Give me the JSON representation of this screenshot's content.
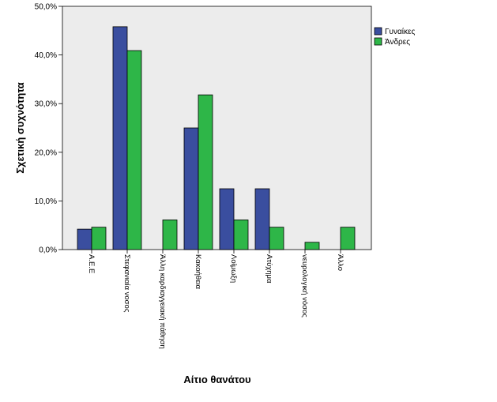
{
  "chart_data": {
    "type": "bar",
    "title": "",
    "xlabel": "Αίτιο θανάτου",
    "ylabel": "Σχετική συχνότητα",
    "ylim": [
      0,
      50
    ],
    "yticks": [
      0,
      10,
      20,
      30,
      40,
      50
    ],
    "ytick_labels": [
      "0,0%",
      "10,0%",
      "20,0%",
      "30,0%",
      "40,0%",
      "50,0%"
    ],
    "categories": [
      "Α.Ε.Ε",
      "Στεφανιαία νοσος",
      "Άλλη καρδιαγγειακή πάθηση",
      "Κακοήθεια",
      "Λοίμωξη",
      "Ατύχημα",
      "νευρολογική νόσος",
      "Άλλο"
    ],
    "series": [
      {
        "name": "Γυναίκες",
        "color": "#3a4e9f",
        "values": [
          4.2,
          45.8,
          0,
          25.0,
          12.5,
          12.5,
          0,
          0
        ]
      },
      {
        "name": "Άνδρες",
        "color": "#2eb648",
        "values": [
          4.6,
          40.9,
          6.1,
          31.8,
          6.1,
          4.6,
          1.5,
          4.6
        ]
      }
    ],
    "grid": false,
    "legend_position": "top-right",
    "plot_background": "#ececec"
  }
}
